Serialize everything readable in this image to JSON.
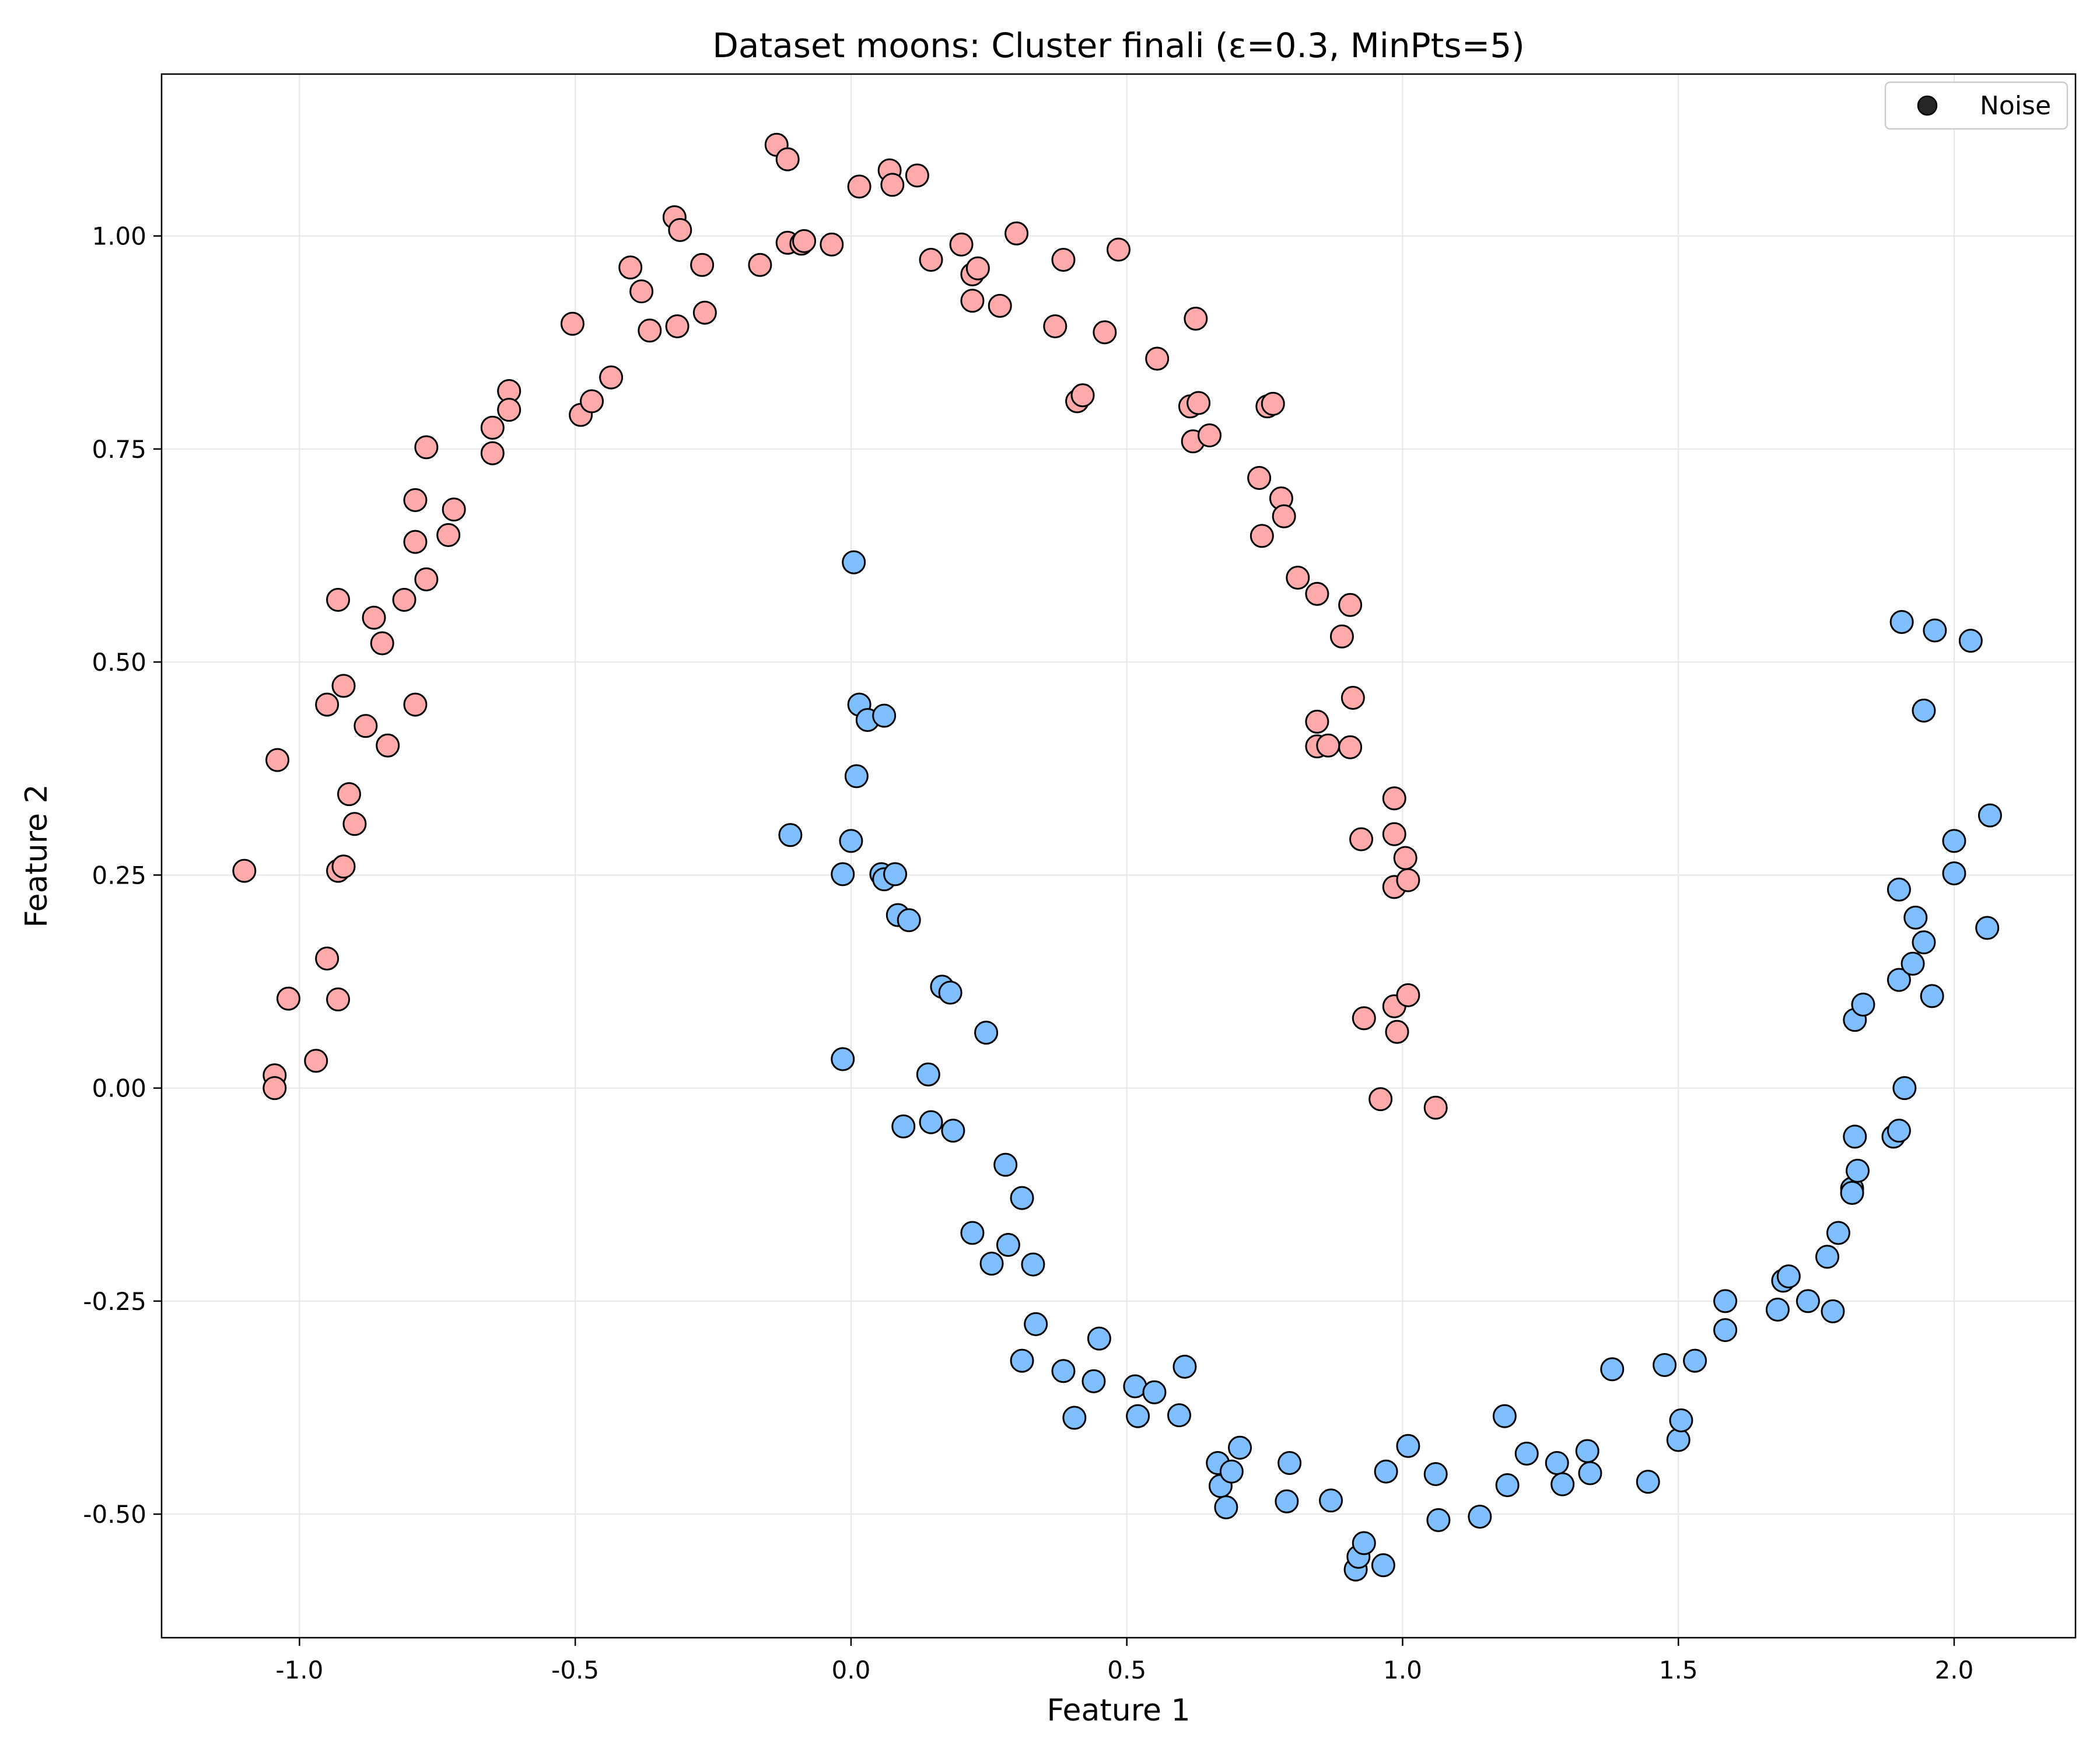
{
  "chart_data": {
    "type": "scatter",
    "title": "Dataset moons: Cluster finali (ε=0.3, MinPts=5)",
    "xlabel": "Feature 1",
    "ylabel": "Feature 2",
    "xlim": [
      -1.25,
      2.22
    ],
    "ylim": [
      -0.645,
      1.19
    ],
    "x_ticks": [
      {
        "value": -1.0,
        "label": "-1.0"
      },
      {
        "value": -0.5,
        "label": "-0.5"
      },
      {
        "value": 0.0,
        "label": "0.0"
      },
      {
        "value": 0.5,
        "label": "0.5"
      },
      {
        "value": 1.0,
        "label": "1.0"
      },
      {
        "value": 1.5,
        "label": "1.5"
      },
      {
        "value": 2.0,
        "label": "2.0"
      }
    ],
    "y_ticks": [
      {
        "value": -0.5,
        "label": "-0.50"
      },
      {
        "value": -0.25,
        "label": "-0.25"
      },
      {
        "value": 0.0,
        "label": "0.00"
      },
      {
        "value": 0.25,
        "label": "0.25"
      },
      {
        "value": 0.5,
        "label": "0.50"
      },
      {
        "value": 0.75,
        "label": "0.75"
      },
      {
        "value": 1.0,
        "label": "1.00"
      }
    ],
    "grid": true,
    "legend": {
      "position": "top-right",
      "entries": [
        {
          "label": "Noise",
          "color": "#000000"
        }
      ]
    },
    "colors": {
      "cluster_red": "#ffaaaa",
      "cluster_blue": "#80bfff",
      "marker_edge": "#000000",
      "grid": "#e6e6e6"
    },
    "series": [
      {
        "color": "#ffaaaa",
        "points": [
          [
            -1.1,
            0.255
          ],
          [
            -1.04,
            0.385
          ],
          [
            -1.02,
            0.105
          ],
          [
            -1.045,
            0.015
          ],
          [
            -1.045,
            0.0
          ],
          [
            -0.97,
            0.032
          ],
          [
            -0.95,
            0.45
          ],
          [
            -0.95,
            0.152
          ],
          [
            -0.93,
            0.104
          ],
          [
            -0.93,
            0.255
          ],
          [
            -0.92,
            0.26
          ],
          [
            -0.93,
            0.573
          ],
          [
            -0.92,
            0.472
          ],
          [
            -0.91,
            0.345
          ],
          [
            -0.9,
            0.31
          ],
          [
            -0.88,
            0.425
          ],
          [
            -0.865,
            0.552
          ],
          [
            -0.85,
            0.522
          ],
          [
            -0.84,
            0.402
          ],
          [
            -0.81,
            0.573
          ],
          [
            -0.79,
            0.45
          ],
          [
            -0.79,
            0.69
          ],
          [
            -0.79,
            0.641
          ],
          [
            -0.77,
            0.597
          ],
          [
            -0.77,
            0.752
          ],
          [
            -0.73,
            0.649
          ],
          [
            -0.72,
            0.679
          ],
          [
            -0.65,
            0.775
          ],
          [
            -0.65,
            0.745
          ],
          [
            -0.62,
            0.818
          ],
          [
            -0.62,
            0.796
          ],
          [
            -0.505,
            0.897
          ],
          [
            -0.49,
            0.79
          ],
          [
            -0.47,
            0.806
          ],
          [
            -0.435,
            0.834
          ],
          [
            -0.4,
            0.963
          ],
          [
            -0.38,
            0.935
          ],
          [
            -0.365,
            0.889
          ],
          [
            -0.32,
            1.022
          ],
          [
            -0.31,
            1.007
          ],
          [
            -0.315,
            0.894
          ],
          [
            -0.27,
            0.966
          ],
          [
            -0.265,
            0.91
          ],
          [
            -0.165,
            0.966
          ],
          [
            -0.135,
            1.107
          ],
          [
            -0.115,
            1.09
          ],
          [
            -0.115,
            0.992
          ],
          [
            -0.09,
            0.991
          ],
          [
            -0.085,
            0.994
          ],
          [
            -0.035,
            0.99
          ],
          [
            0.015,
            1.058
          ],
          [
            0.07,
            1.077
          ],
          [
            0.075,
            1.06
          ],
          [
            0.12,
            1.071
          ],
          [
            0.145,
            0.972
          ],
          [
            0.2,
            0.99
          ],
          [
            0.22,
            0.955
          ],
          [
            0.23,
            0.962
          ],
          [
            0.22,
            0.924
          ],
          [
            0.27,
            0.918
          ],
          [
            0.3,
            1.003
          ],
          [
            0.37,
            0.894
          ],
          [
            0.385,
            0.972
          ],
          [
            0.41,
            0.806
          ],
          [
            0.42,
            0.813
          ],
          [
            0.46,
            0.887
          ],
          [
            0.485,
            0.984
          ],
          [
            0.555,
            0.856
          ],
          [
            0.615,
            0.8
          ],
          [
            0.63,
            0.804
          ],
          [
            0.62,
            0.759
          ],
          [
            0.625,
            0.903
          ],
          [
            0.65,
            0.766
          ],
          [
            0.74,
            0.716
          ],
          [
            0.745,
            0.648
          ],
          [
            0.755,
            0.8
          ],
          [
            0.765,
            0.803
          ],
          [
            0.78,
            0.692
          ],
          [
            0.785,
            0.671
          ],
          [
            0.81,
            0.599
          ],
          [
            0.845,
            0.58
          ],
          [
            0.845,
            0.43
          ],
          [
            0.845,
            0.401
          ],
          [
            0.865,
            0.402
          ],
          [
            0.89,
            0.53
          ],
          [
            0.905,
            0.567
          ],
          [
            0.91,
            0.458
          ],
          [
            0.905,
            0.4
          ],
          [
            0.925,
            0.292
          ],
          [
            0.93,
            0.082
          ],
          [
            0.96,
            -0.013
          ],
          [
            0.985,
            0.34
          ],
          [
            0.985,
            0.298
          ],
          [
            0.985,
            0.236
          ],
          [
            0.985,
            0.096
          ],
          [
            0.99,
            0.066
          ],
          [
            1.005,
            0.27
          ],
          [
            1.01,
            0.244
          ],
          [
            1.01,
            0.109
          ],
          [
            1.06,
            -0.023
          ]
        ]
      },
      {
        "color": "#80bfff",
        "points": [
          [
            0.005,
            0.617
          ],
          [
            0.015,
            0.45
          ],
          [
            0.03,
            0.432
          ],
          [
            0.06,
            0.437
          ],
          [
            -0.11,
            0.297
          ],
          [
            0.0,
            0.29
          ],
          [
            0.01,
            0.366
          ],
          [
            -0.015,
            0.251
          ],
          [
            0.055,
            0.251
          ],
          [
            0.06,
            0.245
          ],
          [
            0.08,
            0.251
          ],
          [
            0.085,
            0.203
          ],
          [
            0.105,
            0.197
          ],
          [
            0.165,
            0.119
          ],
          [
            0.18,
            0.112
          ],
          [
            0.245,
            0.065
          ],
          [
            -0.015,
            0.034
          ],
          [
            0.14,
            0.016
          ],
          [
            0.095,
            -0.045
          ],
          [
            0.145,
            -0.04
          ],
          [
            0.185,
            -0.05
          ],
          [
            0.28,
            -0.09
          ],
          [
            0.31,
            -0.129
          ],
          [
            0.22,
            -0.17
          ],
          [
            0.255,
            -0.206
          ],
          [
            0.285,
            -0.184
          ],
          [
            0.33,
            -0.207
          ],
          [
            0.335,
            -0.277
          ],
          [
            0.31,
            -0.32
          ],
          [
            0.385,
            -0.332
          ],
          [
            0.405,
            -0.387
          ],
          [
            0.44,
            -0.344
          ],
          [
            0.45,
            -0.294
          ],
          [
            0.515,
            -0.35
          ],
          [
            0.52,
            -0.385
          ],
          [
            0.55,
            -0.357
          ],
          [
            0.595,
            -0.384
          ],
          [
            0.605,
            -0.327
          ],
          [
            0.665,
            -0.44
          ],
          [
            0.67,
            -0.467
          ],
          [
            0.68,
            -0.492
          ],
          [
            0.69,
            -0.45
          ],
          [
            0.705,
            -0.422
          ],
          [
            0.79,
            -0.485
          ],
          [
            0.795,
            -0.44
          ],
          [
            0.87,
            -0.484
          ],
          [
            0.915,
            -0.565
          ],
          [
            0.92,
            -0.55
          ],
          [
            0.93,
            -0.534
          ],
          [
            0.965,
            -0.56
          ],
          [
            0.97,
            -0.45
          ],
          [
            1.01,
            -0.42
          ],
          [
            1.06,
            -0.453
          ],
          [
            1.065,
            -0.507
          ],
          [
            1.14,
            -0.503
          ],
          [
            1.185,
            -0.385
          ],
          [
            1.19,
            -0.466
          ],
          [
            1.225,
            -0.429
          ],
          [
            1.28,
            -0.44
          ],
          [
            1.29,
            -0.465
          ],
          [
            1.335,
            -0.426
          ],
          [
            1.34,
            -0.452
          ],
          [
            1.38,
            -0.33
          ],
          [
            1.445,
            -0.462
          ],
          [
            1.475,
            -0.325
          ],
          [
            1.5,
            -0.413
          ],
          [
            1.505,
            -0.39
          ],
          [
            1.53,
            -0.32
          ],
          [
            1.585,
            -0.25
          ],
          [
            1.585,
            -0.284
          ],
          [
            1.68,
            -0.26
          ],
          [
            1.69,
            -0.226
          ],
          [
            1.7,
            -0.221
          ],
          [
            1.735,
            -0.25
          ],
          [
            1.77,
            -0.198
          ],
          [
            1.78,
            -0.262
          ],
          [
            1.79,
            -0.17
          ],
          [
            1.815,
            -0.118
          ],
          [
            1.815,
            -0.123
          ],
          [
            1.82,
            -0.057
          ],
          [
            1.825,
            -0.097
          ],
          [
            1.82,
            0.08
          ],
          [
            1.835,
            0.098
          ],
          [
            1.89,
            -0.057
          ],
          [
            1.9,
            -0.05
          ],
          [
            1.9,
            0.127
          ],
          [
            1.9,
            0.233
          ],
          [
            1.91,
            0.0
          ],
          [
            1.925,
            0.146
          ],
          [
            1.93,
            0.2
          ],
          [
            1.945,
            0.171
          ],
          [
            1.96,
            0.108
          ],
          [
            1.905,
            0.547
          ],
          [
            1.945,
            0.443
          ],
          [
            1.965,
            0.537
          ],
          [
            2.0,
            0.29
          ],
          [
            2.0,
            0.252
          ],
          [
            2.03,
            0.525
          ],
          [
            2.06,
            0.188
          ],
          [
            2.065,
            0.32
          ]
        ]
      }
    ]
  }
}
